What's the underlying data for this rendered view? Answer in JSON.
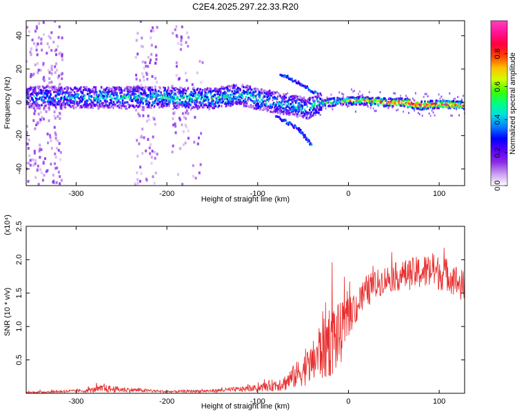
{
  "figure_title": "C2E4.2025.297.22.33.R20",
  "chart_data": [
    {
      "type": "heatmap",
      "title": "",
      "xlabel": "Height of straight line (km)",
      "ylabel": "Frequency (Hz)",
      "xlim": [
        -355,
        128
      ],
      "ylim": [
        -50,
        49
      ],
      "xticks": [
        -300,
        -200,
        -100,
        0,
        100
      ],
      "xtick_labels": [
        "-300",
        "-200",
        "-100",
        "0",
        "100"
      ],
      "yticks": [
        -40,
        -20,
        0,
        20,
        40
      ],
      "ytick_labels": [
        "-40",
        "-20",
        "0",
        "20",
        "40"
      ],
      "colorbar": {
        "label": "Normalized spectral amplitude",
        "range": [
          0,
          1
        ],
        "ticks": [
          0,
          0.2,
          0.4,
          0.6,
          0.8
        ],
        "tick_labels": [
          "0.0",
          "0.2",
          "0.4",
          "0.6",
          "0.8"
        ],
        "colors": [
          "#ffffff",
          "#c99cf0",
          "#8a2be2",
          "#5a00ff",
          "#0000ff",
          "#0080ff",
          "#00e0e0",
          "#00ff80",
          "#40ff00",
          "#d0ff00",
          "#ffc000",
          "#ff4000",
          "#ff0040",
          "#ff1493",
          "#ff40c0"
        ]
      },
      "ridge": [
        {
          "x": -355,
          "f": 3
        },
        {
          "x": -300,
          "f": 3
        },
        {
          "x": -250,
          "f": 3
        },
        {
          "x": -200,
          "f": 3
        },
        {
          "x": -150,
          "f": 2
        },
        {
          "x": -120,
          "f": 5
        },
        {
          "x": -100,
          "f": 2
        },
        {
          "x": -80,
          "f": 0
        },
        {
          "x": -60,
          "f": -2
        },
        {
          "x": -45,
          "f": -4
        },
        {
          "x": -35,
          "f": -1
        },
        {
          "x": -20,
          "f": 0
        },
        {
          "x": 0,
          "f": 1
        },
        {
          "x": 20,
          "f": 1
        },
        {
          "x": 40,
          "f": 0
        },
        {
          "x": 60,
          "f": 0
        },
        {
          "x": 80,
          "f": -2
        },
        {
          "x": 100,
          "f": -1
        },
        {
          "x": 128,
          "f": -2
        }
      ],
      "ridge_strength": [
        {
          "x": -355,
          "a": 0.35
        },
        {
          "x": -200,
          "a": 0.45
        },
        {
          "x": -100,
          "a": 0.45
        },
        {
          "x": -40,
          "a": 0.4
        },
        {
          "x": -20,
          "a": 0.55
        },
        {
          "x": 20,
          "a": 0.7
        },
        {
          "x": 60,
          "a": 0.9
        },
        {
          "x": 100,
          "a": 0.85
        },
        {
          "x": 128,
          "a": 0.8
        }
      ],
      "branches": [
        {
          "x": [
            -75,
            -55,
            -35
          ],
          "f": [
            17,
            12,
            5
          ]
        },
        {
          "x": [
            -80,
            -55,
            -40
          ],
          "f": [
            -8,
            -16,
            -26
          ]
        }
      ],
      "noise_bands": [
        {
          "x0": -355,
          "x1": -315,
          "density": 0.45
        },
        {
          "x0": -235,
          "x1": -210,
          "density": 0.35
        },
        {
          "x0": -195,
          "x1": -175,
          "density": 0.25
        },
        {
          "x0": -172,
          "x1": -160,
          "density": 0.12
        }
      ]
    },
    {
      "type": "line",
      "title": "",
      "xlabel": "Height of straight line (km)",
      "ylabel": "SNR (10 * v/v)",
      "y_multiplier": "(x10⁴)",
      "xlim": [
        -355,
        128
      ],
      "ylim": [
        0,
        2.5
      ],
      "xticks": [
        -300,
        -200,
        -100,
        0,
        100
      ],
      "xtick_labels": [
        "-300",
        "-200",
        "-100",
        "0",
        "100"
      ],
      "yticks": [
        0.5,
        1.0,
        1.5,
        2.0,
        2.5
      ],
      "ytick_labels": [
        "0.5",
        "1.0",
        "1.5",
        "2.0",
        "2.5"
      ],
      "series": [
        {
          "name": "SNR",
          "color": "#e83030",
          "envelope": [
            {
              "x": -355,
              "base": 0.01,
              "spread": 0.02
            },
            {
              "x": -290,
              "base": 0.03,
              "spread": 0.05
            },
            {
              "x": -270,
              "base": 0.05,
              "spread": 0.12
            },
            {
              "x": -240,
              "base": 0.04,
              "spread": 0.07
            },
            {
              "x": -200,
              "base": 0.02,
              "spread": 0.03
            },
            {
              "x": -150,
              "base": 0.03,
              "spread": 0.05
            },
            {
              "x": -100,
              "base": 0.06,
              "spread": 0.1
            },
            {
              "x": -70,
              "base": 0.12,
              "spread": 0.25
            },
            {
              "x": -40,
              "base": 0.35,
              "spread": 0.6
            },
            {
              "x": -25,
              "base": 0.6,
              "spread": 1.2
            },
            {
              "x": -10,
              "base": 0.7,
              "spread": 1.0
            },
            {
              "x": 0,
              "base": 1.05,
              "spread": 0.55
            },
            {
              "x": 20,
              "base": 1.45,
              "spread": 0.5
            },
            {
              "x": 40,
              "base": 1.65,
              "spread": 0.4
            },
            {
              "x": 60,
              "base": 1.7,
              "spread": 0.45
            },
            {
              "x": 90,
              "base": 1.75,
              "spread": 0.55
            },
            {
              "x": 110,
              "base": 1.7,
              "spread": 0.5
            },
            {
              "x": 128,
              "base": 1.5,
              "spread": 0.5
            }
          ]
        }
      ]
    }
  ]
}
